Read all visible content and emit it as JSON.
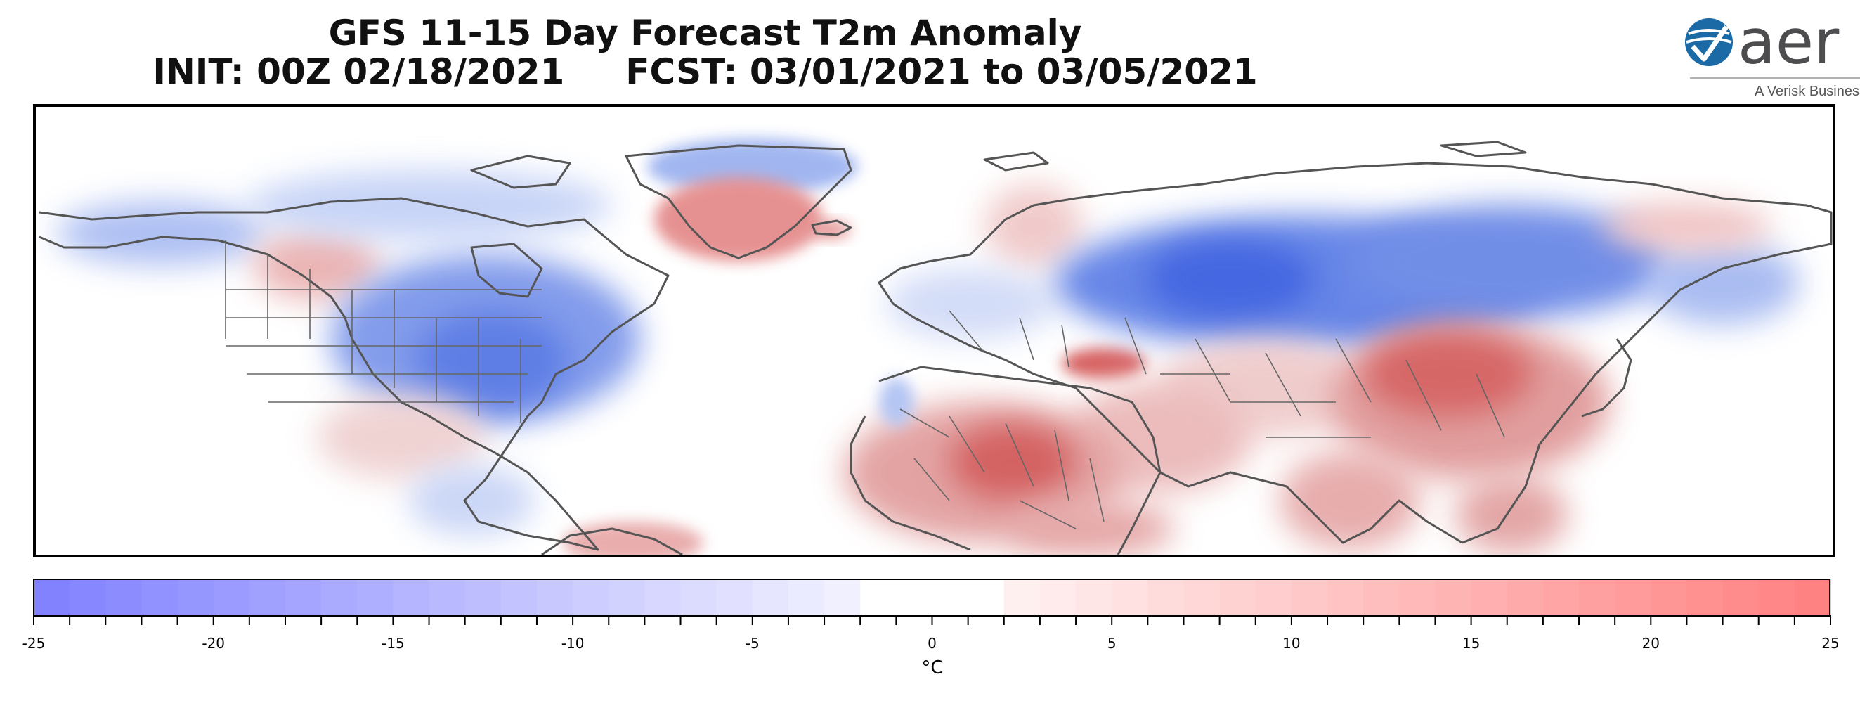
{
  "title": {
    "line1": "GFS 11-15 Day Forecast T2m Anomaly",
    "line2": "INIT: 00Z 02/18/2021     FCST: 03/01/2021 to 03/05/2021"
  },
  "logo": {
    "brand": "aer",
    "tagline": "A Verisk Business",
    "icon": "globe-check-icon",
    "color": "#1b6aa5"
  },
  "map": {
    "projection": "equirectangular",
    "variable": "2 m temperature anomaly",
    "regions": [
      {
        "name": "Greenland",
        "anomaly": "warm"
      },
      {
        "name": "Central / Eastern North America",
        "anomaly": "cold"
      },
      {
        "name": "Alaska / NW Canada",
        "anomaly": "cold"
      },
      {
        "name": "Russia / Siberia",
        "anomaly": "cold"
      },
      {
        "name": "North Africa / Sahara",
        "anomaly": "warm"
      },
      {
        "name": "Central Asia / China / Tibet",
        "anomaly": "warm"
      },
      {
        "name": "India",
        "anomaly": "warm"
      },
      {
        "name": "Europe",
        "anomaly": "mixed"
      }
    ]
  },
  "colorbar": {
    "min": -25,
    "max": 25,
    "step": 1,
    "neutral_band": [
      -2,
      2
    ],
    "cold_color": "#7f7fff",
    "warm_color": "#ff7f7f",
    "tick_values": [
      -25,
      -20,
      -15,
      -10,
      -5,
      0,
      5,
      10,
      15,
      20,
      25
    ],
    "tick_labels": [
      "-25",
      "-20",
      "-15",
      "-10",
      "-5",
      "0",
      "5",
      "10",
      "15",
      "20",
      "25"
    ],
    "unit": "°C"
  }
}
